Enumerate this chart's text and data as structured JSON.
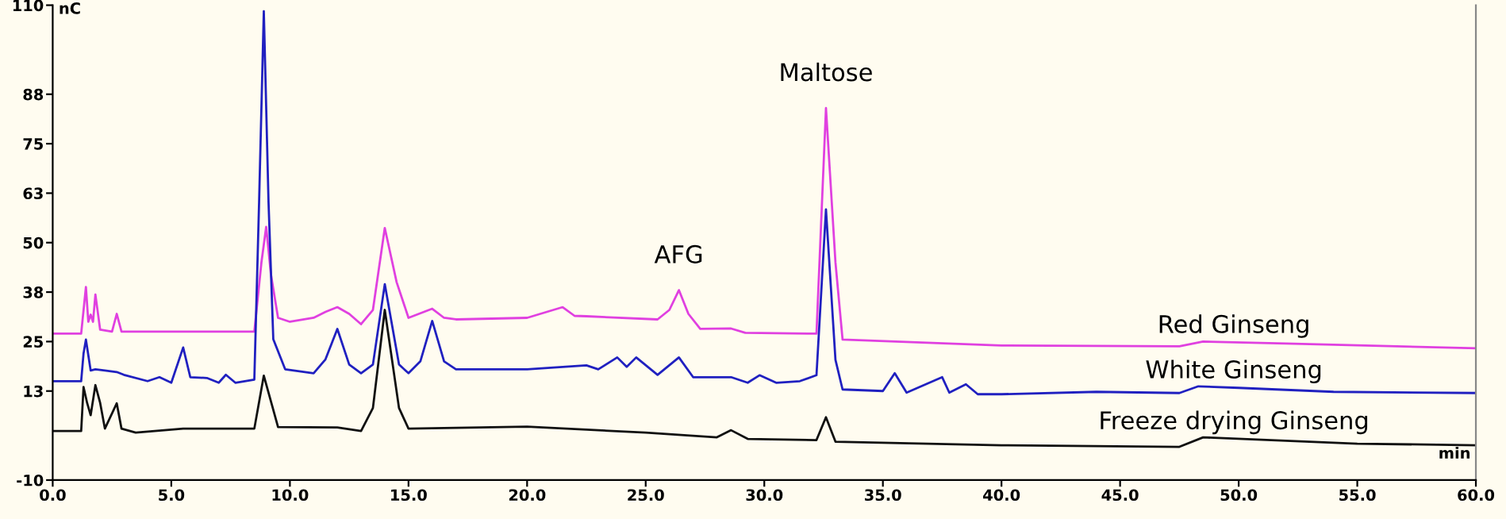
{
  "chart_data": {
    "type": "line",
    "xlabel": "min",
    "ylabel": "nC",
    "xlim": [
      0,
      60
    ],
    "ylim": [
      -10,
      110
    ],
    "xticks": [
      {
        "value": 0,
        "label": "0.0"
      },
      {
        "value": 5,
        "label": "5.0"
      },
      {
        "value": 10,
        "label": "10.0"
      },
      {
        "value": 15,
        "label": "15.0"
      },
      {
        "value": 20,
        "label": "20.0"
      },
      {
        "value": 25,
        "label": "25.0"
      },
      {
        "value": 30,
        "label": "30.0"
      },
      {
        "value": 35,
        "label": "35.0"
      },
      {
        "value": 40,
        "label": "40.0"
      },
      {
        "value": 45,
        "label": "45.0"
      },
      {
        "value": 50,
        "label": "50.0"
      },
      {
        "value": 55,
        "label": "55.0"
      },
      {
        "value": 60,
        "label": "60.0"
      }
    ],
    "yticks": [
      -10,
      {
        "value": 12.5,
        "label": "13"
      },
      25,
      {
        "value": 37.5,
        "label": "38"
      },
      50,
      {
        "value": 62.5,
        "label": "63"
      },
      75,
      {
        "value": 87.5,
        "label": "88"
      },
      110
    ],
    "grid": false,
    "marker": "none",
    "line_style": "solid",
    "series": [
      {
        "name": "Red Ginseng",
        "color": "#e040e0",
        "x": [
          0,
          1.2,
          1.4,
          1.5,
          1.6,
          1.7,
          1.8,
          2.0,
          2.5,
          2.7,
          2.9,
          5,
          8.5,
          8.8,
          9.0,
          9.2,
          9.5,
          10,
          11,
          11.5,
          12,
          12.5,
          13,
          13.5,
          14,
          14.5,
          15,
          16,
          16.5,
          17,
          20,
          21.5,
          22,
          22.5,
          25.5,
          26,
          26.4,
          26.8,
          27.3,
          28.6,
          29.2,
          32.2,
          32.6,
          33.0,
          33.3,
          40,
          47.5,
          48.5,
          52,
          60
        ],
        "values": [
          27,
          27,
          38.8,
          30,
          31.8,
          30,
          36.9,
          28,
          27.5,
          32,
          27.5,
          27.5,
          27.5,
          45,
          54,
          42,
          31,
          30,
          31,
          32.5,
          33.7,
          32,
          29.4,
          33,
          53.7,
          40,
          31,
          33.3,
          31,
          30.6,
          31,
          33.7,
          31.5,
          31.4,
          30.6,
          33,
          38,
          32,
          28.2,
          28.3,
          27.2,
          27,
          84,
          45,
          25.5,
          24,
          23.8,
          25,
          24.5,
          23.3
        ]
      },
      {
        "name": "White Ginseng",
        "color": "#2020c0",
        "x": [
          0,
          1.2,
          1.3,
          1.4,
          1.6,
          1.8,
          2.2,
          2.7,
          3,
          4,
          4.5,
          5,
          5.5,
          5.8,
          6.5,
          7,
          7.3,
          7.7,
          8.5,
          8.7,
          8.9,
          9.1,
          9.3,
          9.8,
          11,
          11.5,
          12,
          12.5,
          13,
          13.5,
          14,
          14.6,
          15,
          15.5,
          16,
          16.5,
          17,
          20,
          22.5,
          23,
          23.8,
          24.2,
          24.6,
          25.5,
          26.4,
          27,
          28.6,
          29.3,
          29.8,
          30.5,
          31.5,
          32.2,
          32.6,
          33,
          33.3,
          35,
          35.5,
          36,
          37.5,
          37.8,
          38.5,
          39,
          40,
          44,
          47.5,
          48.3,
          50,
          54,
          60
        ],
        "values": [
          15,
          15,
          22,
          25.5,
          17.7,
          18,
          17.7,
          17.3,
          16.6,
          15,
          16,
          14.6,
          23.5,
          16,
          15.8,
          14.6,
          16.6,
          14.6,
          15.4,
          60,
          108.5,
          60,
          25.6,
          18,
          17,
          20.5,
          28.2,
          19.2,
          17,
          19.2,
          39.5,
          19.2,
          17,
          20,
          30.2,
          20,
          18,
          18,
          19,
          18,
          21,
          18.6,
          21,
          16.6,
          21,
          16,
          16,
          14.6,
          16.5,
          14.6,
          15,
          16.5,
          58.4,
          20.4,
          12.9,
          12.5,
          17,
          12.1,
          16,
          12.1,
          14.2,
          11.7,
          11.7,
          12.3,
          12,
          13.7,
          13.3,
          12.3,
          12
        ]
      },
      {
        "name": "Freeze drying Ginseng",
        "color": "#101010",
        "x": [
          0,
          1.2,
          1.3,
          1.45,
          1.6,
          1.8,
          2.0,
          2.2,
          2.7,
          2.9,
          3.5,
          5.5,
          8.5,
          8.9,
          9.5,
          12,
          13,
          13.5,
          14,
          14.6,
          15,
          18,
          20,
          25,
          28,
          28.6,
          29.3,
          32.2,
          32.6,
          33,
          40,
          47.5,
          48.5,
          55,
          60
        ],
        "values": [
          2.4,
          2.4,
          13.5,
          9.5,
          6.4,
          14,
          9.5,
          3,
          9.4,
          3,
          2,
          3,
          3,
          16.4,
          3.4,
          3.3,
          2.4,
          8.2,
          33,
          8.2,
          3,
          3.3,
          3.5,
          2,
          0.8,
          2.6,
          0.4,
          0.1,
          5.9,
          -0.3,
          -1.2,
          -1.6,
          0.8,
          -0.8,
          -1.2
        ]
      }
    ],
    "annotations": [
      {
        "text": "AFG",
        "x": 26.4,
        "y": 38
      },
      {
        "text": "Maltose",
        "x": 32.6,
        "y": 84
      }
    ]
  }
}
